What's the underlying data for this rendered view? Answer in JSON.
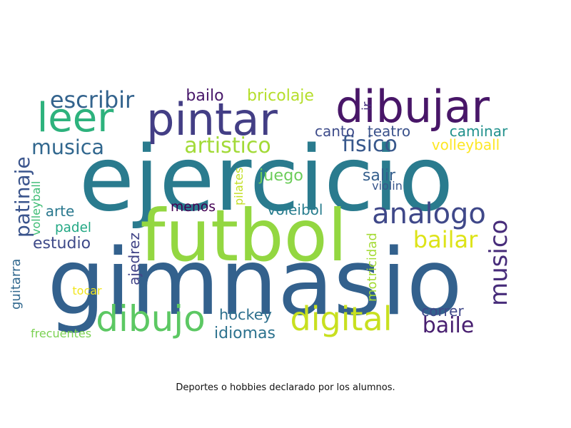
{
  "caption": "Deportes o hobbies declarado por los alumnos.",
  "words": [
    {
      "text": "ejercicio",
      "color": "#2a7b8e",
      "rotated": false
    },
    {
      "text": "gimnasio",
      "color": "#33618d",
      "rotated": false
    },
    {
      "text": "futbol",
      "color": "#93d741",
      "rotated": false
    },
    {
      "text": "pintar",
      "color": "#433e85",
      "rotated": false
    },
    {
      "text": "dibujar",
      "color": "#481668",
      "rotated": false
    },
    {
      "text": "leer",
      "color": "#2db27d",
      "rotated": false
    },
    {
      "text": "musico",
      "color": "#472c7a",
      "rotated": true
    },
    {
      "text": "analogo",
      "color": "#3f4889",
      "rotated": false
    },
    {
      "text": "digital",
      "color": "#c8e020",
      "rotated": false
    },
    {
      "text": "dibujo",
      "color": "#5cc863",
      "rotated": false
    },
    {
      "text": "escribir",
      "color": "#33638d",
      "rotated": false
    },
    {
      "text": "patinaje",
      "color": "#3a548c",
      "rotated": true
    },
    {
      "text": "musica",
      "color": "#31678e",
      "rotated": false
    },
    {
      "text": "artistico",
      "color": "#a2da37",
      "rotated": false
    },
    {
      "text": "fisico",
      "color": "#38588c",
      "rotated": false
    },
    {
      "text": "bailar",
      "color": "#dde318",
      "rotated": false
    },
    {
      "text": "baile",
      "color": "#481f70",
      "rotated": false
    },
    {
      "text": "bailo",
      "color": "#48186a",
      "rotated": false
    },
    {
      "text": "bricolaje",
      "color": "#b5de2b",
      "rotated": false
    },
    {
      "text": "ir",
      "color": "#46337e",
      "rotated": true
    },
    {
      "text": "canto",
      "color": "#3e4c8a",
      "rotated": false
    },
    {
      "text": "teatro",
      "color": "#3b528b",
      "rotated": false
    },
    {
      "text": "caminar",
      "color": "#21918c",
      "rotated": false
    },
    {
      "text": "volleyball",
      "color": "#fde725",
      "rotated": false
    },
    {
      "text": "juego",
      "color": "#6ccd5a",
      "rotated": false
    },
    {
      "text": "salir",
      "color": "#355f8d",
      "rotated": false
    },
    {
      "text": "violin",
      "color": "#39568c",
      "rotated": false
    },
    {
      "text": "pilates",
      "color": "#c2df23",
      "rotated": true
    },
    {
      "text": "volleyball",
      "color": "#3dbc74",
      "rotated": true
    },
    {
      "text": "arte",
      "color": "#2a788e",
      "rotated": false
    },
    {
      "text": "menos",
      "color": "#440154",
      "rotated": false
    },
    {
      "text": "voleibol",
      "color": "#287d8e",
      "rotated": false
    },
    {
      "text": "padel",
      "color": "#22a884",
      "rotated": false
    },
    {
      "text": "estudio",
      "color": "#3e4a89",
      "rotated": false
    },
    {
      "text": "motricidad",
      "color": "#a5db36",
      "rotated": true
    },
    {
      "text": "ajedrez",
      "color": "#414487",
      "rotated": true
    },
    {
      "text": "guitarra",
      "color": "#31688e",
      "rotated": true
    },
    {
      "text": "tocar",
      "color": "#f1e51d",
      "rotated": false
    },
    {
      "text": "hockey",
      "color": "#2d708e",
      "rotated": false
    },
    {
      "text": "correr",
      "color": "#3f4788",
      "rotated": false
    },
    {
      "text": "idiomas",
      "color": "#2c728e",
      "rotated": false
    },
    {
      "text": "frecuentes",
      "color": "#7ad151",
      "rotated": false
    }
  ]
}
